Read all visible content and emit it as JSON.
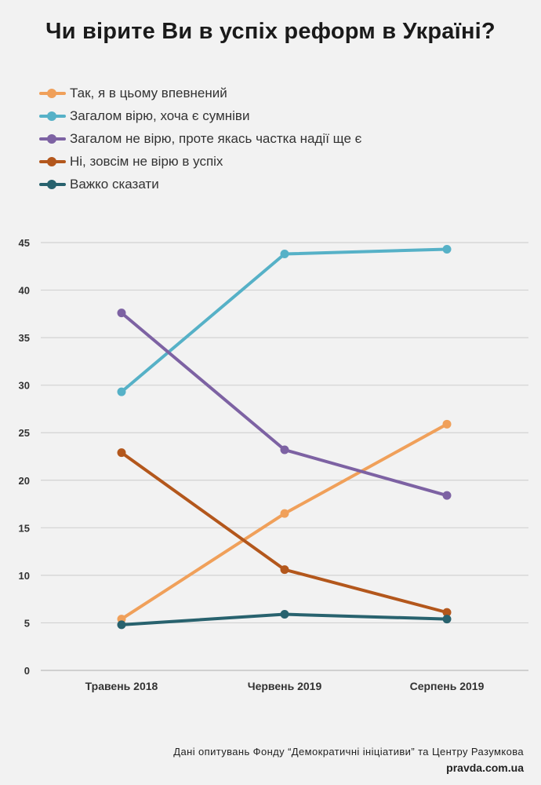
{
  "chart_data": {
    "type": "line",
    "title": "Чи вірите Ви в успіх реформ в Україні?",
    "categories": [
      "Травень 2018",
      "Червень 2019",
      "Серпень 2019"
    ],
    "ylim": [
      0,
      45
    ],
    "yticks": [
      "0",
      "5",
      "10",
      "15",
      "20",
      "25",
      "30",
      "35",
      "40",
      "45"
    ],
    "grid": true,
    "legend_position": "top-left",
    "series": [
      {
        "name": "Так, я в цьому впевнений",
        "color": "#f0a05a",
        "values": [
          5.4,
          16.5,
          25.9
        ]
      },
      {
        "name": "Загалом вірю, хоча є сумніви",
        "color": "#56b1c7",
        "values": [
          29.3,
          43.8,
          44.3
        ]
      },
      {
        "name": "Загалом не вірю, проте якась частка надії ще є",
        "color": "#7d62a3",
        "values": [
          37.6,
          23.2,
          18.4
        ]
      },
      {
        "name": "Ні, зовсім не вірю в успіх",
        "color": "#b3571c",
        "values": [
          22.9,
          10.6,
          6.1
        ]
      },
      {
        "name": "Важко сказати",
        "color": "#28626e",
        "values": [
          4.8,
          5.9,
          5.4
        ]
      }
    ]
  },
  "footer": {
    "source": "Дані опитувань Фонду “Демократичні ініціативи” та Центру Разумкова",
    "site": "pravda.com.ua"
  }
}
